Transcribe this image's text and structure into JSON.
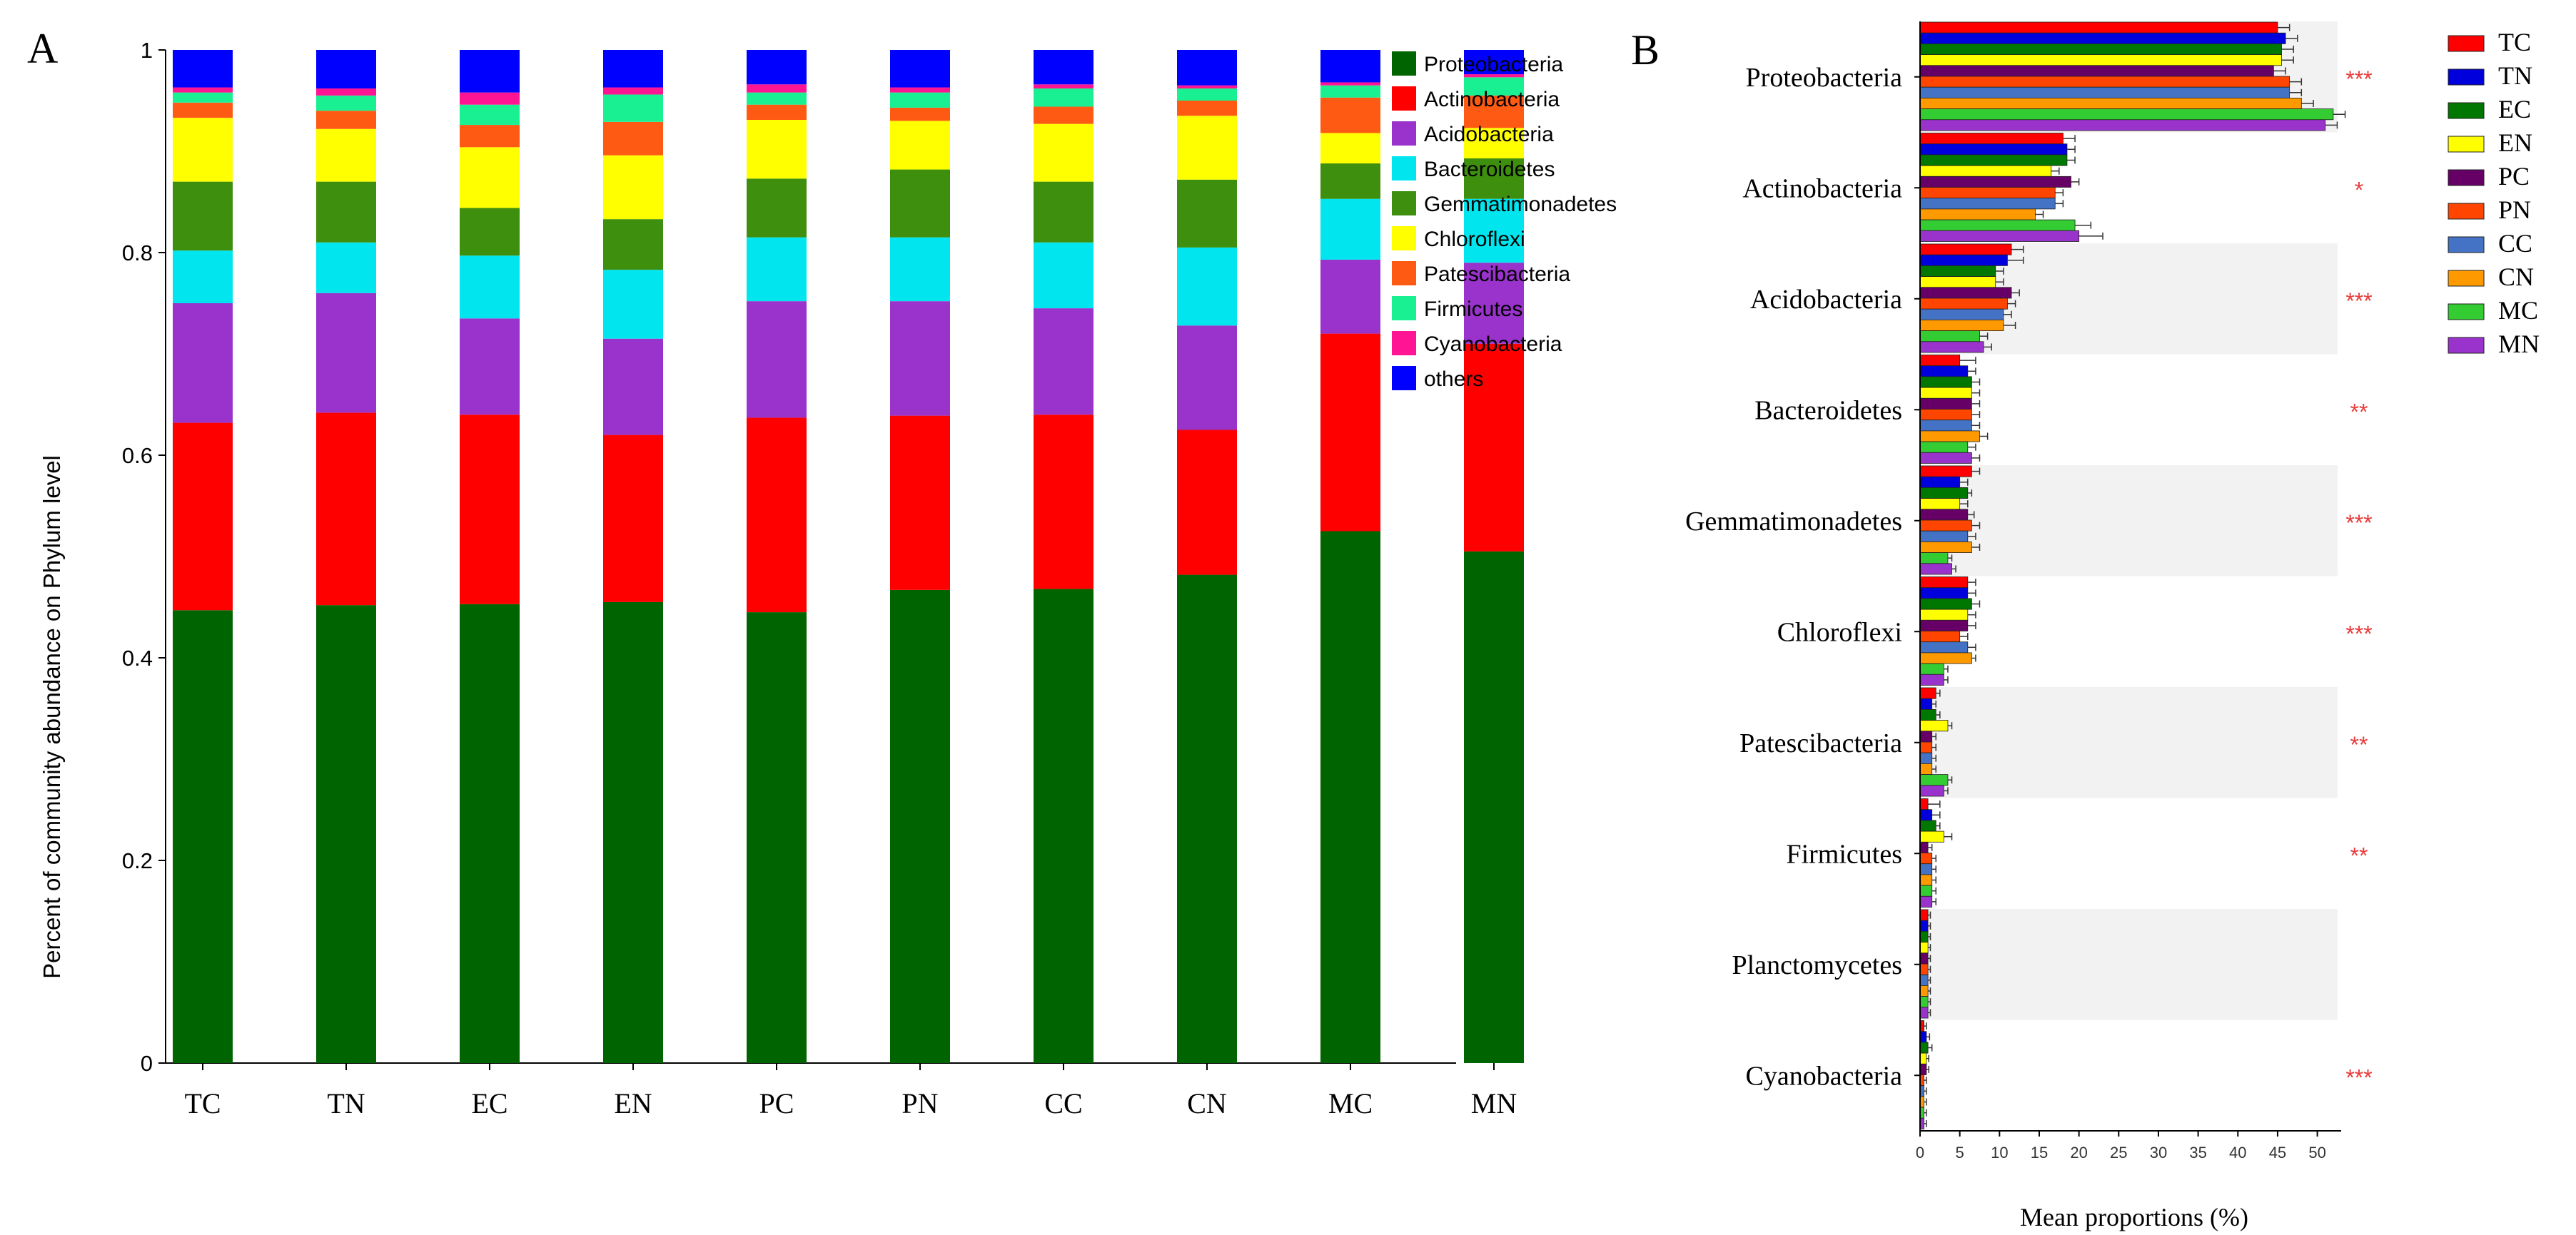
{
  "chart_data": [
    {
      "panel": "A",
      "type": "bar",
      "stacked": true,
      "ylabel": "Percent of community abundance on Phylum level",
      "xlabel": "",
      "ylim": [
        0,
        1
      ],
      "yticks": [
        "0",
        "0.2",
        "0.4",
        "0.6",
        "0.8",
        "1"
      ],
      "legend_position": "right",
      "categories": [
        "TC",
        "TN",
        "EC",
        "EN",
        "PC",
        "PN",
        "CC",
        "CN",
        "MC",
        "MN"
      ],
      "series": [
        {
          "name": "Proteobacteria",
          "color": "#006400",
          "values": [
            0.447,
            0.452,
            0.453,
            0.455,
            0.445,
            0.467,
            0.468,
            0.482,
            0.525,
            0.505
          ]
        },
        {
          "name": "Actinobacteria",
          "color": "#ff0000",
          "values": [
            0.185,
            0.19,
            0.187,
            0.165,
            0.192,
            0.172,
            0.172,
            0.143,
            0.195,
            0.205
          ]
        },
        {
          "name": "Acidobacteria",
          "color": "#9933cc",
          "values": [
            0.118,
            0.118,
            0.095,
            0.095,
            0.115,
            0.113,
            0.105,
            0.103,
            0.073,
            0.08
          ]
        },
        {
          "name": "Bacteroidetes",
          "color": "#00e5ee",
          "values": [
            0.052,
            0.05,
            0.062,
            0.068,
            0.063,
            0.063,
            0.065,
            0.077,
            0.06,
            0.063
          ]
        },
        {
          "name": "Gemmatimonadetes",
          "color": "#3f8f0f",
          "values": [
            0.068,
            0.06,
            0.047,
            0.05,
            0.058,
            0.067,
            0.06,
            0.067,
            0.035,
            0.04
          ]
        },
        {
          "name": "Chloroflexi",
          "color": "#ffff00",
          "values": [
            0.063,
            0.052,
            0.06,
            0.063,
            0.058,
            0.048,
            0.057,
            0.063,
            0.03,
            0.03
          ]
        },
        {
          "name": "Patescibacteria",
          "color": "#ff5a14",
          "values": [
            0.015,
            0.018,
            0.022,
            0.033,
            0.015,
            0.013,
            0.017,
            0.015,
            0.035,
            0.032
          ]
        },
        {
          "name": "Firmicutes",
          "color": "#19f091",
          "values": [
            0.01,
            0.015,
            0.02,
            0.027,
            0.012,
            0.015,
            0.018,
            0.012,
            0.012,
            0.018
          ]
        },
        {
          "name": "Cyanobacteria",
          "color": "#ff1493",
          "values": [
            0.005,
            0.007,
            0.012,
            0.007,
            0.008,
            0.005,
            0.004,
            0.003,
            0.003,
            0.003
          ]
        },
        {
          "name": "others",
          "color": "#0000ff",
          "values": [
            0.037,
            0.038,
            0.042,
            0.037,
            0.034,
            0.037,
            0.034,
            0.035,
            0.032,
            0.024
          ]
        }
      ]
    },
    {
      "panel": "B",
      "type": "bar",
      "orientation": "horizontal",
      "xlabel": "Mean proportions (%)",
      "ylabel": "",
      "xlim": [
        0,
        53
      ],
      "xticks": [
        "0",
        "5",
        "10",
        "15",
        "20",
        "25",
        "30",
        "35",
        "40",
        "45",
        "50"
      ],
      "legend_position": "right",
      "categories": [
        "Proteobacteria",
        "Actinobacteria",
        "Acidobacteria",
        "Bacteroidetes",
        "Gemmatimonadetes",
        "Chloroflexi",
        "Patescibacteria",
        "Firmicutes",
        "Planctomycetes",
        "Cyanobacteria"
      ],
      "significance": [
        "***",
        "*",
        "***",
        "**",
        "***",
        "***",
        "**",
        "**",
        "",
        "***"
      ],
      "series": [
        {
          "name": "TC",
          "color": "#ff0000",
          "values": [
            45.0,
            18.0,
            11.5,
            5.0,
            6.5,
            6.0,
            2.0,
            1.0,
            1.0,
            0.5
          ],
          "errors": [
            1.5,
            1.5,
            1.5,
            2.0,
            1.0,
            1.0,
            0.5,
            1.5,
            0.3,
            0.3
          ]
        },
        {
          "name": "TN",
          "color": "#0000dd",
          "values": [
            46.0,
            18.5,
            11.0,
            6.0,
            5.0,
            6.0,
            1.5,
            1.5,
            1.0,
            0.8
          ],
          "errors": [
            1.5,
            1.0,
            2.0,
            1.0,
            1.0,
            1.0,
            0.5,
            1.0,
            0.3,
            0.4
          ]
        },
        {
          "name": "EC",
          "color": "#007700",
          "values": [
            45.5,
            18.5,
            9.5,
            6.5,
            6.0,
            6.5,
            2.0,
            2.0,
            1.0,
            1.0
          ],
          "errors": [
            1.5,
            1.0,
            1.0,
            1.0,
            0.5,
            1.0,
            0.5,
            0.5,
            0.3,
            0.5
          ]
        },
        {
          "name": "EN",
          "color": "#ffff00",
          "values": [
            45.5,
            16.5,
            9.5,
            6.5,
            5.0,
            6.0,
            3.5,
            3.0,
            1.0,
            0.8
          ],
          "errors": [
            1.5,
            1.0,
            1.0,
            1.0,
            1.0,
            1.0,
            0.5,
            1.0,
            0.3,
            0.3
          ]
        },
        {
          "name": "PC",
          "color": "#660066",
          "values": [
            44.5,
            19.0,
            11.5,
            6.5,
            6.0,
            6.0,
            1.5,
            1.0,
            1.0,
            0.8
          ],
          "errors": [
            1.5,
            1.0,
            1.0,
            1.0,
            0.8,
            1.0,
            0.5,
            0.5,
            0.3,
            0.3
          ]
        },
        {
          "name": "PN",
          "color": "#ff4500",
          "values": [
            46.5,
            17.0,
            11.0,
            6.5,
            6.5,
            5.0,
            1.5,
            1.5,
            1.0,
            0.5
          ],
          "errors": [
            1.5,
            1.0,
            1.0,
            1.0,
            1.0,
            1.0,
            0.5,
            0.5,
            0.3,
            0.3
          ]
        },
        {
          "name": "CC",
          "color": "#4472c4",
          "values": [
            46.5,
            17.0,
            10.5,
            6.5,
            6.0,
            6.0,
            1.5,
            1.5,
            1.0,
            0.5
          ],
          "errors": [
            1.5,
            1.0,
            1.0,
            1.0,
            1.0,
            1.0,
            0.5,
            0.5,
            0.3,
            0.3
          ]
        },
        {
          "name": "CN",
          "color": "#ff9900",
          "values": [
            48.0,
            14.5,
            10.5,
            7.5,
            6.5,
            6.5,
            1.5,
            1.5,
            1.0,
            0.5
          ],
          "errors": [
            1.5,
            1.0,
            1.5,
            1.0,
            1.0,
            0.5,
            0.5,
            0.5,
            0.3,
            0.3
          ]
        },
        {
          "name": "MC",
          "color": "#33cc33",
          "values": [
            52.0,
            19.5,
            7.5,
            6.0,
            3.5,
            3.0,
            3.5,
            1.5,
            1.0,
            0.5
          ],
          "errors": [
            1.5,
            2.0,
            1.0,
            1.0,
            0.5,
            0.5,
            0.5,
            0.5,
            0.3,
            0.3
          ]
        },
        {
          "name": "MN",
          "color": "#9933cc",
          "values": [
            51.0,
            20.0,
            8.0,
            6.5,
            4.0,
            3.0,
            3.0,
            1.5,
            1.0,
            0.5
          ],
          "errors": [
            1.5,
            3.0,
            1.0,
            1.0,
            0.5,
            0.5,
            0.5,
            0.5,
            0.3,
            0.3
          ]
        }
      ]
    }
  ],
  "panel_labels": {
    "a": "A",
    "b": "B"
  }
}
